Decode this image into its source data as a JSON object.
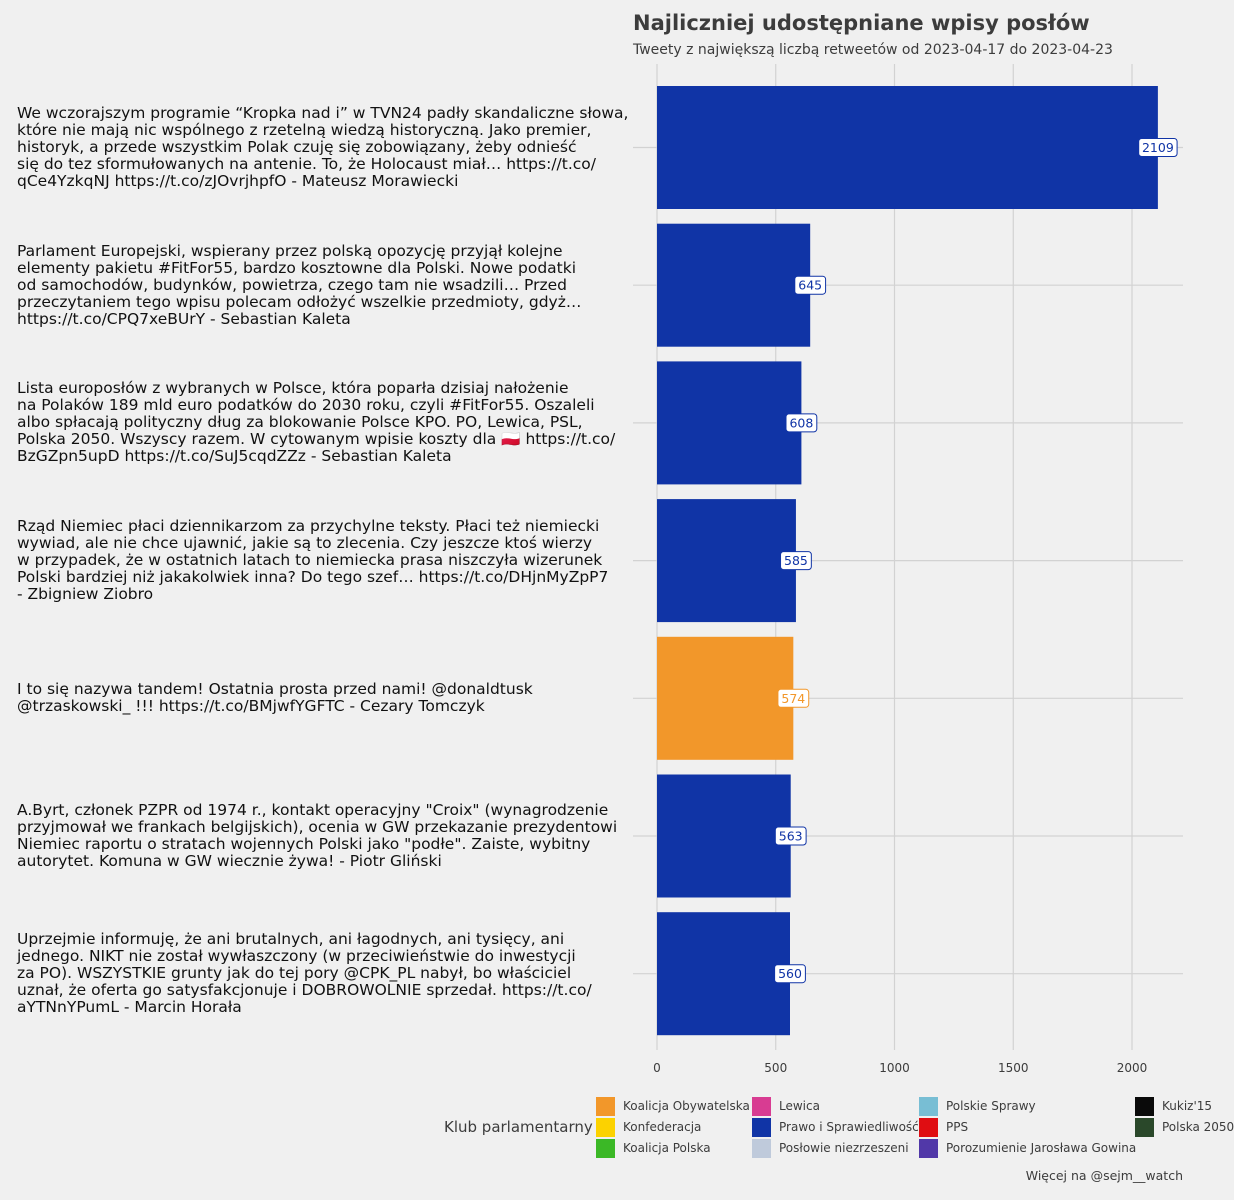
{
  "chart_data": {
    "type": "bar",
    "orientation": "horizontal",
    "title": "Najliczniej udostępniane wpisy posłów",
    "subtitle": "Tweety z największą liczbą retweetów od 2023-04-17 do 2023-04-23",
    "xlim": [
      0,
      2200
    ],
    "xticks": [
      0,
      500,
      1000,
      1500,
      2000
    ],
    "grid": true,
    "categories": [
      "We wczorajszym programie “Kropka nad i” w TVN24 padły skandaliczne słowa, które nie mają nic wspólnego z rzetelną wiedzą historyczną. Jako premier, historyk, a przede wszystkim Polak czuję się zobowiązany, żeby odnieść się do tez sformułowanych na antenie. To, że Holocaust miał… https://t.co/qCe4YzkqNJ https://t.co/zJOvrjhpfO - Mateusz Morawiecki",
      "Parlament Europejski, wspierany przez polską opozycję przyjął kolejne elementy pakietu #FitFor55, bardzo kosztowne dla Polski. Nowe podatki od samochodów, budynków, powietrza, czego tam nie wsadzili… Przed przeczytaniem tego wpisu polecam odłożyć wszelkie przedmioty, gdyż… https://t.co/CPQ7xeBUrY - Sebastian Kaleta",
      "Lista europosłów z wybranych w Polsce, która poparła dzisiaj nałożenie na Polaków 189 mld euro podatków do 2030 roku, czyli #FitFor55. Oszaleli albo spłacają polityczny dług za blokowanie Polsce KPO. PO, Lewica, PSL, Polska 2050. Wszyscy razem. W cytowanym wpisie koszty dla 🇵🇱 https://t.co/BzGZpn5upD https://t.co/SuJ5cqdZZz - Sebastian Kaleta",
      "Rząd Niemiec płaci dziennikarzom za przychylne teksty. Płaci też niemiecki wywiad, ale nie chce ujawnić, jakie są to zlecenia. Czy jeszcze ktoś wierzy w przypadek, że w ostatnich latach to niemiecka prasa niszczyła wizerunek Polski bardziej niż jakakolwiek inna? Do tego szef… https://t.co/DHjnMyZpP7 - Zbigniew Ziobro",
      "I to się nazywa tandem! Ostatnia prosta przed nami! @donaldtusk @trzaskowski_ !!! https://t.co/BMjwfYGFTC - Cezary Tomczyk",
      "A.Byrt, członek PZPR od 1974 r., kontakt operacyjny \"Croix\" (wynagrodzenie przyjmował we frankach belgijskich), ocenia w GW przekazanie prezydentowi Niemiec raportu o stratach wojennych Polski jako \"podłe\". Zaiste, wybitny autorytet. Komuna w GW wiecznie żywa! - Piotr Gliński",
      "Uprzejmie informuję, że ani brutalnych, ani łagodnych, ani tysięcy, ani jednego. NIKT nie został wywłaszczony (w przeciwieństwie do inwestycji za PO). WSZYSTKIE grunty jak do tej pory @CPK_PL nabył, bo właściciel uznał, że oferta go satysfakcjonuje i DOBROWOLNIE sprzedał. https://t.co/aYTNnYPumL - Marcin Horała"
    ],
    "label_lines": [
      [
        "We wczorajszym programie “Kropka nad i” w TVN24 padły skandaliczne słowa,",
        "które nie mają nic wspólnego z rzetelną wiedzą historyczną. Jako premier,",
        "historyk, a przede wszystkim Polak czuję się zobowiązany, żeby odnieść",
        "się do tez sformułowanych na antenie. To, że Holocaust miał… https://t.co/",
        "qCe4YzkqNJ https://t.co/zJOvrjhpfO - Mateusz Morawiecki"
      ],
      [
        "Parlament Europejski, wspierany przez polską opozycję przyjął kolejne",
        "elementy pakietu #FitFor55, bardzo kosztowne dla Polski. Nowe podatki",
        "od samochodów, budynków, powietrza, czego tam nie wsadzili… Przed",
        "przeczytaniem tego wpisu polecam odłożyć wszelkie przedmioty, gdyż…",
        "https://t.co/CPQ7xeBUrY - Sebastian Kaleta"
      ],
      [
        "Lista europosłów z wybranych w Polsce, która poparła dzisiaj nałożenie",
        "na Polaków 189 mld euro podatków do 2030 roku, czyli #FitFor55. Oszaleli",
        "albo spłacają polityczny dług za blokowanie Polsce KPO. PO, Lewica, PSL,",
        "Polska 2050. Wszyscy razem. W cytowanym wpisie koszty dla 🇵🇱 https://t.co/",
        "BzGZpn5upD https://t.co/SuJ5cqdZZz - Sebastian Kaleta"
      ],
      [
        "Rząd Niemiec płaci dziennikarzom za przychylne teksty. Płaci też niemiecki",
        "wywiad, ale nie chce ujawnić, jakie są to zlecenia. Czy jeszcze ktoś wierzy",
        "w przypadek, że w ostatnich latach to niemiecka prasa niszczyła wizerunek",
        "Polski bardziej niż jakakolwiek inna? Do tego szef… https://t.co/DHjnMyZpP7",
        "- Zbigniew Ziobro"
      ],
      [
        "I to się nazywa tandem! Ostatnia prosta przed nami! @donaldtusk",
        "@trzaskowski_ !!! https://t.co/BMjwfYGFTC - Cezary Tomczyk"
      ],
      [
        "A.Byrt, członek PZPR od 1974 r., kontakt operacyjny \"Croix\" (wynagrodzenie",
        "przyjmował we frankach belgijskich), ocenia w GW przekazanie prezydentowi",
        "Niemiec raportu o stratach wojennych Polski jako \"podłe\". Zaiste, wybitny",
        "autorytet. Komuna w GW wiecznie żywa! - Piotr Gliński"
      ],
      [
        "Uprzejmie informuję, że ani brutalnych, ani łagodnych, ani tysięcy, ani",
        "jednego. NIKT nie został wywłaszczony (w przeciwieństwie do inwestycji",
        "za PO). WSZYSTKIE grunty jak do tej pory @CPK_PL nabył, bo właściciel",
        "uznał, że oferta go satysfakcjonuje i DOBROWOLNIE sprzedał. https://t.co/",
        "aYTNnYPumL - Marcin Horała"
      ]
    ],
    "values": [
      2109,
      645,
      608,
      585,
      574,
      563,
      560
    ],
    "bar_parties": [
      "Prawo i Sprawiedliwość",
      "Prawo i Sprawiedliwość",
      "Prawo i Sprawiedliwość",
      "Prawo i Sprawiedliwość",
      "Koalicja Obywatelska",
      "Prawo i Sprawiedliwość",
      "Prawo i Sprawiedliwość"
    ],
    "legend": {
      "title": "Klub parlamentarny",
      "placement": "bottom",
      "entries": [
        {
          "name": "Koalicja Obywatelska",
          "color": "#f2972a"
        },
        {
          "name": "Konfederacja",
          "color": "#fcd200"
        },
        {
          "name": "Koalicja Polska",
          "color": "#3bb826"
        },
        {
          "name": "Lewica",
          "color": "#d83c92"
        },
        {
          "name": "Prawo i Sprawiedliwość",
          "color": "#1034a6"
        },
        {
          "name": "Posłowie niezrzeszeni",
          "color": "#bfcadb"
        },
        {
          "name": "Polskie Sprawy",
          "color": "#78bed4"
        },
        {
          "name": "PPS",
          "color": "#e00d12"
        },
        {
          "name": "Porozumienie Jarosława Gowina",
          "color": "#5138a8"
        },
        {
          "name": "Kukiz'15",
          "color": "#0a0a0a"
        },
        {
          "name": "Polska 2050",
          "color": "#2a482a"
        }
      ]
    }
  },
  "caption": "Więcej na @sejm__watch"
}
